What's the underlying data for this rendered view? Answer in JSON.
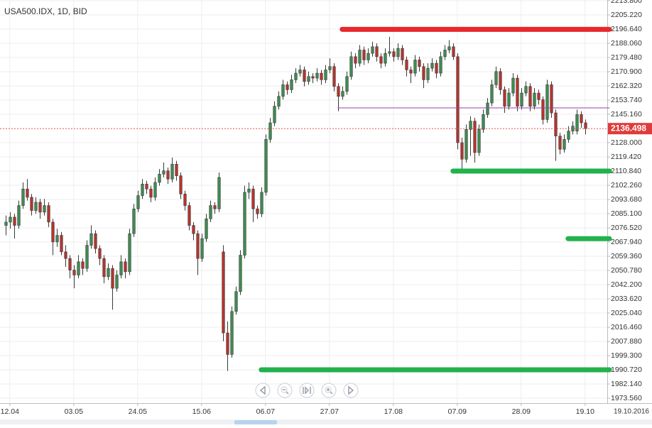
{
  "chart_data": {
    "type": "candlestick",
    "title": "USA500.IDX, 1D, BID",
    "date_label": "19.10.2016",
    "up_color": "#3d8b4f",
    "down_color": "#b8322c",
    "grid": true,
    "ylim": [
      1970.56,
      2214.23
    ],
    "xlim": [
      -1.3,
      141.2
    ],
    "yticks": [
      {
        "value": 1973.56,
        "label": "1973.560"
      },
      {
        "value": 1982.14,
        "label": "1982.140"
      },
      {
        "value": 1990.72,
        "label": "1990.720"
      },
      {
        "value": 1999.3,
        "label": "1999.300"
      },
      {
        "value": 2007.88,
        "label": "2007.880"
      },
      {
        "value": 2016.46,
        "label": "2016.460"
      },
      {
        "value": 2025.04,
        "label": "2025.040"
      },
      {
        "value": 2033.62,
        "label": "2033.620"
      },
      {
        "value": 2042.2,
        "label": "2042.200"
      },
      {
        "value": 2050.78,
        "label": "2050.780"
      },
      {
        "value": 2059.36,
        "label": "2059.360"
      },
      {
        "value": 2067.94,
        "label": "2067.940"
      },
      {
        "value": 2076.52,
        "label": "2076.520"
      },
      {
        "value": 2085.1,
        "label": "2085.100"
      },
      {
        "value": 2093.68,
        "label": "2093.680"
      },
      {
        "value": 2102.26,
        "label": "2102.260"
      },
      {
        "value": 2110.84,
        "label": "2110.840"
      },
      {
        "value": 2119.42,
        "label": "2119.420"
      },
      {
        "value": 2128,
        "label": "2128.000"
      },
      {
        "value": 2145.16,
        "label": "2145.160"
      },
      {
        "value": 2153.74,
        "label": "2153.740"
      },
      {
        "value": 2162.32,
        "label": "2162.320"
      },
      {
        "value": 2170.9,
        "label": "2170.900"
      },
      {
        "value": 2179.48,
        "label": "2179.480"
      },
      {
        "value": 2188.06,
        "label": "2188.060"
      },
      {
        "value": 2196.64,
        "label": "2196.640"
      },
      {
        "value": 2205.22,
        "label": "2205.220"
      },
      {
        "value": 2213.8,
        "label": "2213.800"
      }
    ],
    "xticks": [
      {
        "value": 1,
        "label": "12.04"
      },
      {
        "value": 16,
        "label": "03.05"
      },
      {
        "value": 31,
        "label": "24.05"
      },
      {
        "value": 46,
        "label": "15.06"
      },
      {
        "value": 61,
        "label": "06.07"
      },
      {
        "value": 76,
        "label": "27.07"
      },
      {
        "value": 91,
        "label": "17.08"
      },
      {
        "value": 106,
        "label": "07.09"
      },
      {
        "value": 121,
        "label": "28.09"
      },
      {
        "value": 136,
        "label": "19.10"
      }
    ],
    "last_price": 2136.498,
    "last_price_color": "#e03b3b",
    "levels": [
      {
        "value": 2196.5,
        "from": 79,
        "color": "#e8282b",
        "width": 7
      },
      {
        "value": 2110.84,
        "from": 105,
        "color": "#22b24c",
        "width": 7
      },
      {
        "value": 2070,
        "from": 132,
        "color": "#22b24c",
        "width": 7
      },
      {
        "value": 1990.72,
        "from": 60,
        "color": "#22b24c",
        "width": 7
      },
      {
        "value": 2149,
        "from": 78,
        "color": "#9b3fa8",
        "width": 1
      }
    ],
    "candles": [
      [
        2078,
        2084,
        2072,
        2080
      ],
      [
        2080,
        2086,
        2076,
        2083
      ],
      [
        2083,
        2085,
        2070,
        2078
      ],
      [
        2078,
        2093,
        2076,
        2090
      ],
      [
        2090,
        2104,
        2088,
        2100
      ],
      [
        2100,
        2106,
        2093,
        2095
      ],
      [
        2095,
        2097,
        2084,
        2087
      ],
      [
        2087,
        2095,
        2085,
        2092
      ],
      [
        2092,
        2094,
        2082,
        2086
      ],
      [
        2086,
        2094,
        2084,
        2090
      ],
      [
        2090,
        2092,
        2077,
        2080
      ],
      [
        2080,
        2082,
        2060,
        2068
      ],
      [
        2068,
        2076,
        2065,
        2072
      ],
      [
        2072,
        2074,
        2060,
        2062
      ],
      [
        2062,
        2066,
        2053,
        2058
      ],
      [
        2058,
        2060,
        2046,
        2051
      ],
      [
        2051,
        2054,
        2040,
        2048
      ],
      [
        2048,
        2060,
        2046,
        2056
      ],
      [
        2056,
        2058,
        2048,
        2052
      ],
      [
        2052,
        2069,
        2050,
        2066
      ],
      [
        2066,
        2078,
        2064,
        2073
      ],
      [
        2073,
        2075,
        2061,
        2064
      ],
      [
        2064,
        2066,
        2054,
        2058
      ],
      [
        2058,
        2060,
        2043,
        2047
      ],
      [
        2047,
        2055,
        2045,
        2052
      ],
      [
        2052,
        2054,
        2027,
        2040
      ],
      [
        2040,
        2051,
        2038,
        2048
      ],
      [
        2048,
        2060,
        2046,
        2056
      ],
      [
        2056,
        2058,
        2046,
        2050
      ],
      [
        2050,
        2076,
        2048,
        2073
      ],
      [
        2073,
        2091,
        2071,
        2088
      ],
      [
        2088,
        2099,
        2086,
        2096
      ],
      [
        2096,
        2106,
        2094,
        2103
      ],
      [
        2103,
        2105,
        2097,
        2100
      ],
      [
        2100,
        2102,
        2092,
        2095
      ],
      [
        2095,
        2107,
        2093,
        2104
      ],
      [
        2104,
        2112,
        2102,
        2109
      ],
      [
        2109,
        2116,
        2107,
        2111
      ],
      [
        2111,
        2113,
        2103,
        2106
      ],
      [
        2106,
        2119,
        2104,
        2115
      ],
      [
        2115,
        2117,
        2105,
        2108
      ],
      [
        2108,
        2110,
        2094,
        2097
      ],
      [
        2097,
        2099,
        2087,
        2090
      ],
      [
        2090,
        2092,
        2075,
        2078
      ],
      [
        2078,
        2080,
        2069,
        2073
      ],
      [
        2073,
        2075,
        2048,
        2058
      ],
      [
        2058,
        2073,
        2056,
        2070
      ],
      [
        2070,
        2085,
        2068,
        2082
      ],
      [
        2082,
        2093,
        2080,
        2090
      ],
      [
        2090,
        2092,
        2085,
        2088
      ],
      [
        2088,
        2110,
        2086,
        2107
      ],
      [
        2062,
        2066,
        2008,
        2013
      ],
      [
        2013,
        2020,
        1990,
        2000
      ],
      [
        2000,
        2029,
        1998,
        2026
      ],
      [
        2026,
        2041,
        2024,
        2038
      ],
      [
        2038,
        2063,
        2036,
        2060
      ],
      [
        2060,
        2102,
        2058,
        2098
      ],
      [
        2098,
        2104,
        2094,
        2100
      ],
      [
        2100,
        2102,
        2080,
        2088
      ],
      [
        2088,
        2090,
        2082,
        2085
      ],
      [
        2085,
        2101,
        2083,
        2098
      ],
      [
        2098,
        2133,
        2096,
        2130
      ],
      [
        2130,
        2143,
        2128,
        2140
      ],
      [
        2140,
        2153,
        2138,
        2150
      ],
      [
        2150,
        2159,
        2148,
        2156
      ],
      [
        2156,
        2166,
        2154,
        2163
      ],
      [
        2163,
        2165,
        2157,
        2160
      ],
      [
        2160,
        2169,
        2158,
        2166
      ],
      [
        2166,
        2173,
        2164,
        2170
      ],
      [
        2170,
        2175,
        2168,
        2172
      ],
      [
        2172,
        2174,
        2162,
        2165
      ],
      [
        2165,
        2171,
        2163,
        2168
      ],
      [
        2168,
        2170,
        2164,
        2167
      ],
      [
        2167,
        2173,
        2165,
        2170
      ],
      [
        2170,
        2172,
        2163,
        2166
      ],
      [
        2166,
        2175,
        2164,
        2172
      ],
      [
        2172,
        2179,
        2170,
        2174
      ],
      [
        2174,
        2176,
        2159,
        2162
      ],
      [
        2162,
        2164,
        2147,
        2156
      ],
      [
        2156,
        2162,
        2154,
        2159
      ],
      [
        2159,
        2171,
        2157,
        2168
      ],
      [
        2168,
        2183,
        2166,
        2180
      ],
      [
        2180,
        2182,
        2173,
        2176
      ],
      [
        2176,
        2187,
        2174,
        2184
      ],
      [
        2184,
        2186,
        2175,
        2178
      ],
      [
        2178,
        2185,
        2176,
        2182
      ],
      [
        2182,
        2189,
        2180,
        2186
      ],
      [
        2186,
        2188,
        2177,
        2180
      ],
      [
        2180,
        2182,
        2173,
        2176
      ],
      [
        2176,
        2185,
        2174,
        2182
      ],
      [
        2182,
        2192,
        2180,
        2183
      ],
      [
        2183,
        2185,
        2177,
        2180
      ],
      [
        2180,
        2188,
        2178,
        2185
      ],
      [
        2185,
        2187,
        2175,
        2178
      ],
      [
        2178,
        2180,
        2168,
        2172
      ],
      [
        2172,
        2174,
        2164,
        2170
      ],
      [
        2170,
        2181,
        2168,
        2178
      ],
      [
        2178,
        2180,
        2171,
        2174
      ],
      [
        2174,
        2176,
        2161,
        2166
      ],
      [
        2166,
        2176,
        2164,
        2173
      ],
      [
        2173,
        2179,
        2171,
        2176
      ],
      [
        2176,
        2178,
        2167,
        2170
      ],
      [
        2170,
        2183,
        2168,
        2180
      ],
      [
        2180,
        2187,
        2178,
        2184
      ],
      [
        2184,
        2190,
        2182,
        2186
      ],
      [
        2186,
        2188,
        2178,
        2180
      ],
      [
        2180,
        2182,
        2124,
        2128
      ],
      [
        2128,
        2131,
        2111,
        2118
      ],
      [
        2118,
        2139,
        2116,
        2136
      ],
      [
        2136,
        2144,
        2120,
        2141
      ],
      [
        2141,
        2143,
        2116,
        2122
      ],
      [
        2122,
        2139,
        2120,
        2136
      ],
      [
        2136,
        2148,
        2134,
        2145
      ],
      [
        2145,
        2155,
        2143,
        2152
      ],
      [
        2152,
        2166,
        2150,
        2163
      ],
      [
        2163,
        2174,
        2161,
        2171
      ],
      [
        2171,
        2173,
        2157,
        2160
      ],
      [
        2160,
        2162,
        2146,
        2150
      ],
      [
        2150,
        2161,
        2148,
        2158
      ],
      [
        2158,
        2170,
        2156,
        2167
      ],
      [
        2167,
        2169,
        2147,
        2150
      ],
      [
        2150,
        2161,
        2148,
        2158
      ],
      [
        2158,
        2165,
        2156,
        2162
      ],
      [
        2162,
        2164,
        2147,
        2150
      ],
      [
        2150,
        2161,
        2148,
        2158
      ],
      [
        2158,
        2160,
        2151,
        2154
      ],
      [
        2154,
        2156,
        2139,
        2142
      ],
      [
        2142,
        2166,
        2140,
        2163
      ],
      [
        2163,
        2165,
        2143,
        2146
      ],
      [
        2146,
        2148,
        2117,
        2132
      ],
      [
        2132,
        2134,
        2121,
        2124
      ],
      [
        2124,
        2133,
        2122,
        2130
      ],
      [
        2130,
        2138,
        2128,
        2135
      ],
      [
        2135,
        2141,
        2133,
        2138
      ],
      [
        2135,
        2148,
        2133,
        2145
      ],
      [
        2145,
        2147,
        2137,
        2140
      ],
      [
        2140,
        2142,
        2133,
        2136.498
      ]
    ]
  }
}
